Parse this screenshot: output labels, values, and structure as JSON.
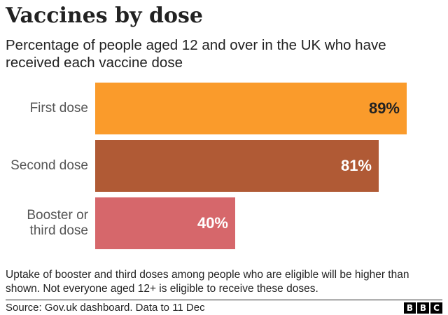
{
  "title": "Vaccines by dose",
  "subtitle": "Percentage of people aged 12 and over in the UK who have received each vaccine dose",
  "chart_data": {
    "type": "bar",
    "orientation": "horizontal",
    "categories": [
      "First dose",
      "Second dose",
      "Booster or\nthird dose"
    ],
    "values": [
      89,
      81,
      40
    ],
    "value_labels": [
      "89%",
      "81%",
      "40%"
    ],
    "unit": "%",
    "xlim": [
      0,
      100
    ],
    "grid": false,
    "colors": [
      "#fa9b2b",
      "#b05a35",
      "#d6676b"
    ],
    "label_colors": [
      "#222222",
      "#ffffff",
      "#ffffff"
    ]
  },
  "note": "Uptake of booster and third doses among people who are eligible will be higher than shown. Not everyone aged 12+ is eligible to receive these doses.",
  "source": "Source: Gov.uk dashboard. Data to 11 Dec",
  "logo": {
    "letters": [
      "B",
      "B",
      "C"
    ],
    "text": "BBC"
  }
}
